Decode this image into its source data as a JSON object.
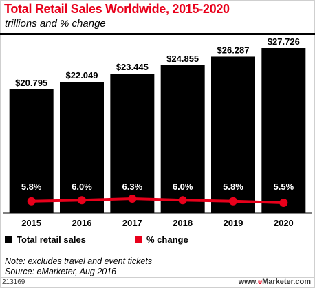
{
  "header": {
    "title": "Total Retail Sales Worldwide, 2015-2020",
    "subtitle": "trillions and % change"
  },
  "legend": {
    "bars_label": "Total retail sales",
    "line_label": "% change"
  },
  "notes": {
    "note": "Note: excludes travel and event tickets",
    "source": "Source: eMarketer, Aug 2016"
  },
  "footer": {
    "chart_id": "213169",
    "brand_prefix": "www.",
    "brand_e": "e",
    "brand_rest": "Marketer.com"
  },
  "colors": {
    "bar": "#000000",
    "line": "#e8001b",
    "title": "#e8001b"
  },
  "chart_data": {
    "type": "bar",
    "categories": [
      "2015",
      "2016",
      "2017",
      "2018",
      "2019",
      "2020"
    ],
    "series": [
      {
        "name": "Total retail sales",
        "type": "bar",
        "values": [
          20.795,
          22.049,
          23.445,
          24.855,
          26.287,
          27.726
        ],
        "labels": [
          "$20.795",
          "$22.049",
          "$23.445",
          "$24.855",
          "$26.287",
          "$27.726"
        ]
      },
      {
        "name": "% change",
        "type": "line",
        "values": [
          5.8,
          6.0,
          6.3,
          6.0,
          5.8,
          5.5
        ],
        "labels": [
          "5.8%",
          "6.0%",
          "6.3%",
          "6.0%",
          "5.8%",
          "5.5%"
        ]
      }
    ],
    "title": "Total Retail Sales Worldwide, 2015-2020",
    "xlabel": "",
    "ylabel": "",
    "grid": false,
    "legend_position": "bottom-left"
  }
}
